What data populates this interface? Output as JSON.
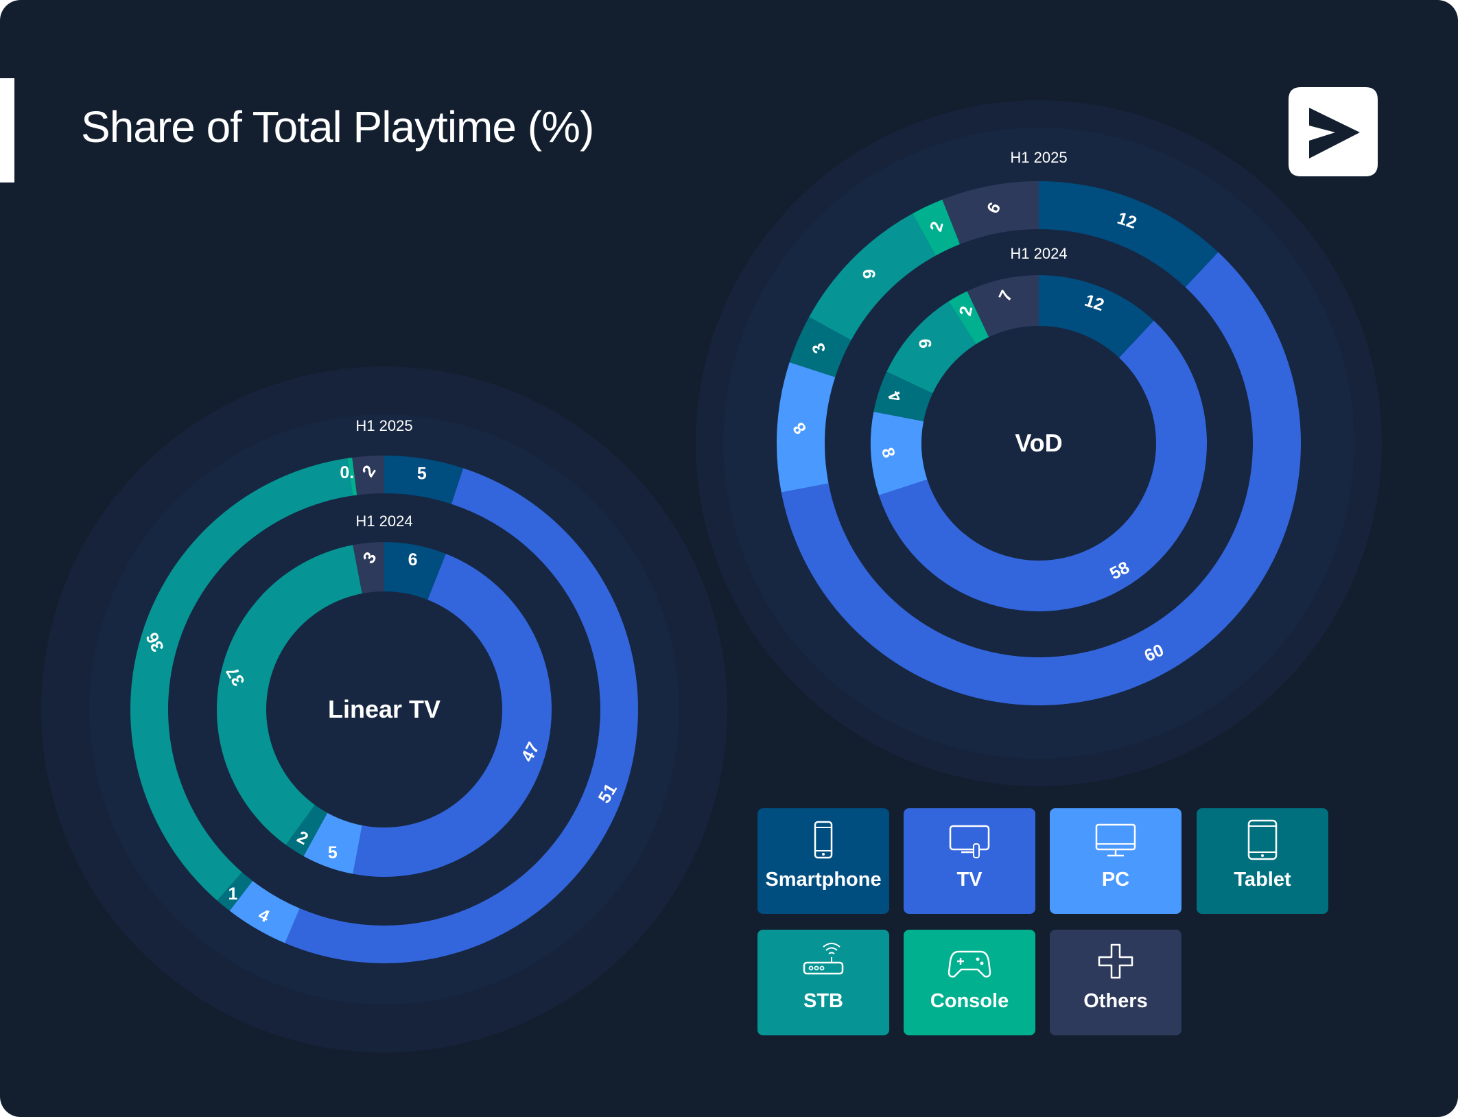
{
  "title": "Share of Total Playtime (%)",
  "colors": {
    "background": "#131e2f",
    "Smartphone": "#004d80",
    "TV": "#3366dd",
    "PC": "#4a99ff",
    "Tablet": "#00707e",
    "STB": "#069594",
    "Console": "#00b08f",
    "Others": "#2d3a5c"
  },
  "legend": [
    {
      "label": "Smartphone",
      "icon": "smartphone-icon"
    },
    {
      "label": "TV",
      "icon": "tv-icon"
    },
    {
      "label": "PC",
      "icon": "monitor-icon"
    },
    {
      "label": "Tablet",
      "icon": "tablet-icon"
    },
    {
      "label": "STB",
      "icon": "router-icon"
    },
    {
      "label": "Console",
      "icon": "gamepad-icon"
    },
    {
      "label": "Others",
      "icon": "plus-icon"
    }
  ],
  "chart_data": [
    {
      "type": "pie",
      "title": "Linear TV",
      "rings": [
        {
          "name": "H1 2025",
          "slices": [
            {
              "category": "Smartphone",
              "value": 5,
              "label": "5"
            },
            {
              "category": "TV",
              "value": 51,
              "label": "51"
            },
            {
              "category": "PC",
              "value": 4,
              "label": "4"
            },
            {
              "category": "Tablet",
              "value": 1,
              "label": "1"
            },
            {
              "category": "STB",
              "value": 36,
              "label": "36"
            },
            {
              "category": "Console",
              "value": 0.3,
              "label": "0.3"
            },
            {
              "category": "Others",
              "value": 2,
              "label": "2"
            }
          ]
        },
        {
          "name": "H1 2024",
          "slices": [
            {
              "category": "Smartphone",
              "value": 6,
              "label": "6"
            },
            {
              "category": "TV",
              "value": 47,
              "label": "47"
            },
            {
              "category": "PC",
              "value": 5,
              "label": "5"
            },
            {
              "category": "Tablet",
              "value": 2,
              "label": "2"
            },
            {
              "category": "STB",
              "value": 37,
              "label": "37"
            },
            {
              "category": "Others",
              "value": 3,
              "label": "3"
            }
          ]
        }
      ]
    },
    {
      "type": "pie",
      "title": "VoD",
      "rings": [
        {
          "name": "H1 2025",
          "slices": [
            {
              "category": "Smartphone",
              "value": 12,
              "label": "12"
            },
            {
              "category": "TV",
              "value": 60,
              "label": "60"
            },
            {
              "category": "PC",
              "value": 8,
              "label": "8"
            },
            {
              "category": "Tablet",
              "value": 3,
              "label": "3"
            },
            {
              "category": "STB",
              "value": 9,
              "label": "9"
            },
            {
              "category": "Console",
              "value": 2,
              "label": "2"
            },
            {
              "category": "Others",
              "value": 6,
              "label": "6"
            }
          ]
        },
        {
          "name": "H1 2024",
          "slices": [
            {
              "category": "Smartphone",
              "value": 12,
              "label": "12"
            },
            {
              "category": "TV",
              "value": 58,
              "label": "58"
            },
            {
              "category": "PC",
              "value": 8,
              "label": "8"
            },
            {
              "category": "Tablet",
              "value": 4,
              "label": "4"
            },
            {
              "category": "STB",
              "value": 9,
              "label": "9"
            },
            {
              "category": "Console",
              "value": 2,
              "label": "2"
            },
            {
              "category": "Others",
              "value": 7,
              "label": "7"
            }
          ]
        }
      ]
    }
  ]
}
